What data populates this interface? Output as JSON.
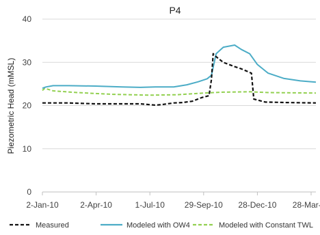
{
  "chart_data": {
    "type": "line",
    "title": "P4",
    "xlabel": "",
    "ylabel": "Piezometric Head (mMSL)",
    "ylim": [
      0,
      40
    ],
    "yticks": [
      0,
      10,
      20,
      30,
      40
    ],
    "xlim": [
      "2010-01-02",
      "2011-04-05"
    ],
    "xtick_labels": [
      "2-Jan-10",
      "2-Apr-10",
      "1-Jul-10",
      "29-Sep-10",
      "28-Dec-10",
      "28-Mar-11"
    ],
    "xtick_dates": [
      "2010-01-02",
      "2010-04-02",
      "2010-07-01",
      "2010-09-29",
      "2010-12-28",
      "2011-03-28"
    ],
    "grid": "horizontal",
    "legend_position": "bottom",
    "series": [
      {
        "name": "Measured",
        "color": "#111111",
        "dash": "dashed",
        "x": [
          "2010-01-02",
          "2010-02-15",
          "2010-04-01",
          "2010-05-15",
          "2010-06-15",
          "2010-07-10",
          "2010-07-20",
          "2010-08-10",
          "2010-08-25",
          "2010-09-10",
          "2010-09-25",
          "2010-10-08",
          "2010-10-12",
          "2010-10-15",
          "2010-10-20",
          "2010-11-01",
          "2010-11-20",
          "2010-12-01",
          "2010-12-18",
          "2010-12-22",
          "2011-01-10",
          "2011-02-15",
          "2011-04-05"
        ],
        "values": [
          20.6,
          20.6,
          20.4,
          20.4,
          20.4,
          20.1,
          20.2,
          20.6,
          20.7,
          21.0,
          21.8,
          22.3,
          26.0,
          32.0,
          31.3,
          30.0,
          29.0,
          28.5,
          27.5,
          21.5,
          20.8,
          20.7,
          20.6
        ]
      },
      {
        "name": "Modeled with OW4",
        "color": "#4bacc6",
        "dash": "solid",
        "x": [
          "2010-01-02",
          "2010-01-08",
          "2010-01-20",
          "2010-02-15",
          "2010-04-01",
          "2010-05-15",
          "2010-06-15",
          "2010-07-10",
          "2010-08-10",
          "2010-09-01",
          "2010-09-20",
          "2010-10-05",
          "2010-10-12",
          "2010-10-20",
          "2010-11-01",
          "2010-11-20",
          "2010-12-01",
          "2010-12-15",
          "2010-12-28",
          "2011-01-15",
          "2011-02-10",
          "2011-03-10",
          "2011-04-05"
        ],
        "values": [
          24.0,
          24.3,
          24.6,
          24.6,
          24.5,
          24.3,
          24.2,
          24.3,
          24.3,
          24.8,
          25.5,
          26.2,
          27.0,
          32.0,
          33.5,
          34.0,
          33.0,
          32.0,
          29.5,
          27.5,
          26.3,
          25.7,
          25.4
        ]
      },
      {
        "name": "Modeled with Constant TWL",
        "color": "#92d050",
        "dash": "dashed",
        "x": [
          "2010-01-02",
          "2010-01-06",
          "2010-01-20",
          "2010-03-01",
          "2010-05-01",
          "2010-07-01",
          "2010-08-15",
          "2010-09-29",
          "2010-11-01",
          "2010-12-15",
          "2011-01-15",
          "2011-04-05"
        ],
        "values": [
          23.5,
          24.0,
          23.4,
          23.0,
          22.6,
          22.4,
          22.5,
          22.9,
          23.1,
          23.2,
          23.0,
          22.9
        ]
      }
    ]
  }
}
